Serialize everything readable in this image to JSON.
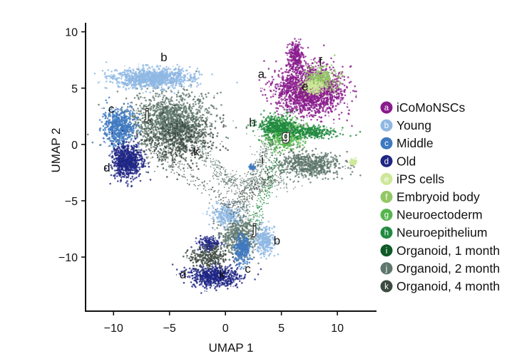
{
  "chart_data": {
    "type": "scatter",
    "xlabel": "UMAP 1",
    "ylabel": "UMAP 2",
    "xlim": [
      -12.5,
      13.5
    ],
    "ylim": [
      -14.8,
      10.8
    ],
    "xticks": [
      -10,
      -5,
      0,
      5,
      10
    ],
    "yticks": [
      10,
      5,
      0,
      -5,
      -10
    ],
    "xtick_labels": [
      "−10",
      "−5",
      "0",
      "5",
      "10"
    ],
    "ytick_labels": [
      "10",
      "5",
      "0",
      "−5",
      "−10"
    ],
    "grid": false,
    "legend_position": "right",
    "categories": [
      {
        "letter": "a",
        "name": "iCoMoNSCs",
        "color": "#8a1b8c"
      },
      {
        "letter": "b",
        "name": "Young",
        "color": "#8fb8e3"
      },
      {
        "letter": "c",
        "name": "Middle",
        "color": "#3e79c0"
      },
      {
        "letter": "d",
        "name": "Old",
        "color": "#1f2585"
      },
      {
        "letter": "e",
        "name": "iPS cells",
        "color": "#cde89a"
      },
      {
        "letter": "f",
        "name": "Embryoid body",
        "color": "#93c766"
      },
      {
        "letter": "g",
        "name": "Neuroectoderm",
        "color": "#55b54c"
      },
      {
        "letter": "h",
        "name": "Neuroepithelium",
        "color": "#1f8a3e"
      },
      {
        "letter": "i",
        "name": "Organoid, 1 month",
        "color": "#0e5a28"
      },
      {
        "letter": "j",
        "name": "Organoid, 2 month",
        "color": "#5f776d"
      },
      {
        "letter": "k",
        "name": "Organoid, 4 month",
        "color": "#3d4a41"
      }
    ],
    "clusters": [
      {
        "group": "j",
        "cx": -5.0,
        "cy": 2.0,
        "sx": 3.3,
        "sy": 2.4,
        "n": 1400
      },
      {
        "group": "k",
        "cx": -4.0,
        "cy": 0.5,
        "sx": 2.8,
        "sy": 2.2,
        "n": 500
      },
      {
        "group": "b",
        "cx": -6.5,
        "cy": 5.9,
        "sx": 3.2,
        "sy": 0.8,
        "n": 1100
      },
      {
        "group": "c",
        "cx": -9.5,
        "cy": 1.5,
        "sx": 1.3,
        "sy": 1.6,
        "n": 650
      },
      {
        "group": "d",
        "cx": -8.8,
        "cy": -1.5,
        "sx": 1.2,
        "sy": 1.3,
        "n": 800
      },
      {
        "group": "a",
        "cx": 7.5,
        "cy": 4.8,
        "sx": 2.7,
        "sy": 1.9,
        "n": 1800
      },
      {
        "group": "a",
        "cx": 6.3,
        "cy": 7.8,
        "sx": 0.6,
        "sy": 1.2,
        "n": 250
      },
      {
        "group": "f",
        "cx": 8.5,
        "cy": 5.8,
        "sx": 1.2,
        "sy": 0.9,
        "n": 350
      },
      {
        "group": "e",
        "cx": 7.8,
        "cy": 5.1,
        "sx": 0.9,
        "sy": 0.6,
        "n": 200
      },
      {
        "group": "g",
        "cx": 5.3,
        "cy": 0.8,
        "sx": 1.5,
        "sy": 1.2,
        "n": 500
      },
      {
        "group": "h",
        "cx": 4.5,
        "cy": 1.6,
        "sx": 1.7,
        "sy": 0.9,
        "n": 400
      },
      {
        "group": "h",
        "cx": 7.5,
        "cy": 1.1,
        "sx": 2.3,
        "sy": 0.5,
        "n": 300
      },
      {
        "group": "j",
        "cx": 7.5,
        "cy": -1.8,
        "sx": 2.6,
        "sy": 1.0,
        "n": 650
      },
      {
        "group": "e",
        "cx": 11.4,
        "cy": -1.6,
        "sx": 0.35,
        "sy": 0.3,
        "n": 50
      },
      {
        "group": "j",
        "cx": 1.2,
        "cy": -8.0,
        "sx": 1.7,
        "sy": 1.6,
        "n": 550
      },
      {
        "group": "c",
        "cx": 1.5,
        "cy": -9.3,
        "sx": 0.6,
        "sy": 1.2,
        "n": 300
      },
      {
        "group": "d",
        "cx": -1.0,
        "cy": -11.7,
        "sx": 2.0,
        "sy": 0.9,
        "n": 650
      },
      {
        "group": "d",
        "cx": -1.5,
        "cy": -8.8,
        "sx": 0.9,
        "sy": 0.6,
        "n": 150
      },
      {
        "group": "b",
        "cx": 3.5,
        "cy": -8.5,
        "sx": 0.8,
        "sy": 1.1,
        "n": 300
      },
      {
        "group": "b",
        "cx": 0.0,
        "cy": -6.3,
        "sx": 1.2,
        "sy": 0.8,
        "n": 250
      },
      {
        "group": "k",
        "cx": -1.5,
        "cy": -10.0,
        "sx": 1.6,
        "sy": 0.8,
        "n": 250
      },
      {
        "group": "c",
        "cx": 2.4,
        "cy": -2.0,
        "sx": 0.25,
        "sy": 0.2,
        "n": 40
      }
    ],
    "bridges": [
      {
        "group": "j",
        "from": [
          -5.0,
          3.0
        ],
        "to": [
          0.8,
          -4.0
        ],
        "n": 260
      },
      {
        "group": "k",
        "from": [
          -7.5,
          0.5
        ],
        "to": [
          1.0,
          -6.0
        ],
        "n": 180
      },
      {
        "group": "j",
        "from": [
          4.0,
          0.5
        ],
        "to": [
          1.5,
          -5.5
        ],
        "n": 240
      },
      {
        "group": "h",
        "from": [
          4.5,
          -1.5
        ],
        "to": [
          2.5,
          -7.0
        ],
        "n": 180
      },
      {
        "group": "j",
        "from": [
          -1.0,
          -3.0
        ],
        "to": [
          6.0,
          -3.5
        ],
        "n": 180
      },
      {
        "group": "k",
        "from": [
          0.5,
          -5.5
        ],
        "to": [
          4.5,
          -2.5
        ],
        "n": 160
      }
    ],
    "annotations": [
      {
        "text": "a",
        "x": 3.2,
        "y": 5.9,
        "style": "plain"
      },
      {
        "text": "b",
        "x": -5.5,
        "y": 7.4,
        "style": "plain"
      },
      {
        "text": "c",
        "x": -10.2,
        "y": 2.8,
        "style": "plain"
      },
      {
        "text": "d",
        "x": -10.6,
        "y": -2.4,
        "style": "plain"
      },
      {
        "text": "e",
        "x": 7.1,
        "y": 4.8,
        "style": "plain"
      },
      {
        "text": "f",
        "x": 8.5,
        "y": 7.0,
        "style": "plain"
      },
      {
        "text": "g",
        "x": 5.4,
        "y": 0.4,
        "style": "white"
      },
      {
        "text": "h",
        "x": 2.4,
        "y": 1.6,
        "style": "plain"
      },
      {
        "text": "i",
        "x": 3.3,
        "y": -1.7,
        "style": "plain"
      },
      {
        "text": "j",
        "x": -7.0,
        "y": 2.3,
        "style": "white"
      },
      {
        "text": "k",
        "x": -2.6,
        "y": -1.0,
        "style": "plain"
      },
      {
        "text": "j",
        "x": 2.6,
        "y": -7.9,
        "style": "white"
      },
      {
        "text": "b",
        "x": 4.6,
        "y": -8.9,
        "style": "plain"
      },
      {
        "text": "d",
        "x": -3.8,
        "y": -11.9,
        "style": "plain"
      },
      {
        "text": "k",
        "x": -0.3,
        "y": -11.9,
        "style": "plain"
      },
      {
        "text": "c",
        "x": 2.0,
        "y": -11.4,
        "style": "plain"
      }
    ]
  }
}
